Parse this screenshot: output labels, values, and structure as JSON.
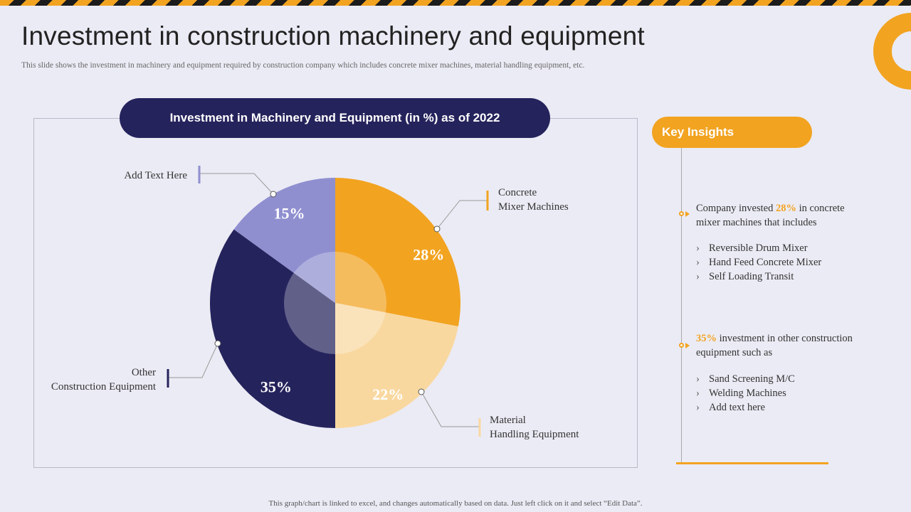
{
  "header": {
    "title": "Investment in construction machinery and equipment",
    "subtitle": "This slide shows the investment in machinery  and equipment required by construction company which includes concrete mixer  machines, material  handling equipment, etc."
  },
  "chart_data": {
    "type": "pie",
    "title": "Investment in Machinery and Equipment (in %) as of 2022",
    "unit": "%",
    "slices": [
      {
        "label": "Concrete Mixer Machines",
        "value": 28,
        "display": "28%",
        "color": "#f2a320",
        "label_lines": [
          "Concrete",
          "Mixer  Machines"
        ]
      },
      {
        "label": "Material Handling Equipment",
        "value": 22,
        "display": "22%",
        "color": "#f9d8a0",
        "label_lines": [
          "Material",
          "Handling  Equipment"
        ]
      },
      {
        "label": "Other Construction Equipment",
        "value": 35,
        "display": "35%",
        "color": "#25235c",
        "label_lines": [
          "Other",
          "Construction  Equipment"
        ]
      },
      {
        "label": "Add Text Here",
        "value": 15,
        "display": "15%",
        "color": "#8f8fd0",
        "label_lines": [
          "Add Text Here"
        ]
      }
    ]
  },
  "insights": {
    "title": "Key Insights",
    "block1": {
      "text_before": "Company invested ",
      "highlight": "28%",
      "text_after": " in concrete mixer  machines  that includes",
      "items": [
        "Reversible  Drum Mixer",
        "Hand Feed Concrete Mixer",
        "Self Loading  Transit"
      ]
    },
    "block2": {
      "text_before": "",
      "highlight": "35%",
      "text_after": " investment  in  other construction  equipment  such as",
      "items": [
        "Sand Screening  M/C",
        "Welding  Machines",
        "Add text  here"
      ]
    },
    "bullet_symbol": "›"
  },
  "footer": {
    "note": "This graph/chart is linked to excel,  and changes  automatically based on data.  Just left click on it and select  “Edit Data”."
  },
  "colors": {
    "accent": "#f2a320",
    "navy": "#25235c",
    "lavender": "#8f8fd0",
    "light_orange": "#f9d8a0",
    "background": "#ebebf5"
  }
}
